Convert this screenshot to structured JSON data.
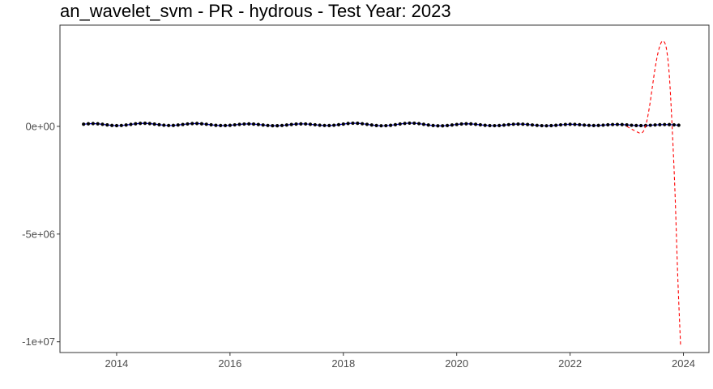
{
  "chart_data": {
    "type": "line",
    "title": "an_wavelet_svm - PR - hydrous - Test Year: 2023",
    "xlabel": "",
    "ylabel": "",
    "xlim": [
      2013.0,
      2024.45
    ],
    "ylim": [
      -10500000,
      4700000
    ],
    "x_ticks": [
      2014,
      2016,
      2018,
      2020,
      2022,
      2024
    ],
    "x_tick_labels": [
      "2014",
      "2016",
      "2018",
      "2020",
      "2022",
      "2024"
    ],
    "y_ticks": [
      0,
      -5000000,
      -10000000
    ],
    "y_tick_labels": [
      "0e+00",
      "-5e+06",
      "-1e+07"
    ],
    "grid": false,
    "legend": "none",
    "series": [
      {
        "style": "line-with-points",
        "color": "#000000",
        "line_color": "#0000cc",
        "x_start": 2013.417,
        "x_step": 0.0833333,
        "values": [
          100000,
          120000,
          128000,
          118000,
          95000,
          68000,
          45000,
          35000,
          42000,
          62000,
          90000,
          118000,
          138000,
          142000,
          130000,
          106000,
          78000,
          55000,
          42000,
          45000,
          62000,
          88000,
          112000,
          128000,
          132000,
          120000,
          98000,
          72000,
          50000,
          38000,
          38000,
          50000,
          70000,
          92000,
          108000,
          114000,
          106000,
          86000,
          62000,
          42000,
          30000,
          30000,
          42000,
          62000,
          86000,
          106000,
          116000,
          112000,
          96000,
          74000,
          54000,
          42000,
          40000,
          52000,
          76000,
          106000,
          132000,
          146000,
          142000,
          122000,
          94000,
          64000,
          40000,
          28000,
          32000,
          50000,
          78000,
          110000,
          136000,
          150000,
          146000,
          126000,
          96000,
          64000,
          38000,
          24000,
          24000,
          38000,
          62000,
          88000,
          110000,
          120000,
          114000,
          96000,
          72000,
          50000,
          36000,
          32000,
          40000,
          58000,
          80000,
          98000,
          106000,
          102000,
          86000,
          66000,
          46000,
          32000,
          28000,
          34000,
          50000,
          70000,
          88000,
          96000,
          92000,
          78000,
          60000,
          46000,
          40000,
          44000,
          56000,
          72000,
          84000,
          88000,
          82000,
          68000,
          52000,
          40000,
          36000,
          40000,
          52000,
          66000,
          78000,
          84000,
          82000,
          70000,
          54000
        ]
      },
      {
        "style": "dashed",
        "color": "#ff0000",
        "x": [
          2023.0,
          2023.1,
          2023.2,
          2023.25,
          2023.3,
          2023.35,
          2023.4,
          2023.45,
          2023.5,
          2023.55,
          2023.6,
          2023.65,
          2023.7,
          2023.75,
          2023.8,
          2023.85,
          2023.9,
          2023.95
        ],
        "values": [
          0,
          -150000,
          -280000,
          -320000,
          -200000,
          200000,
          900000,
          1800000,
          2700000,
          3400000,
          3850000,
          3950000,
          3600000,
          2400000,
          0,
          -3000000,
          -7000000,
          -10200000
        ]
      }
    ]
  }
}
